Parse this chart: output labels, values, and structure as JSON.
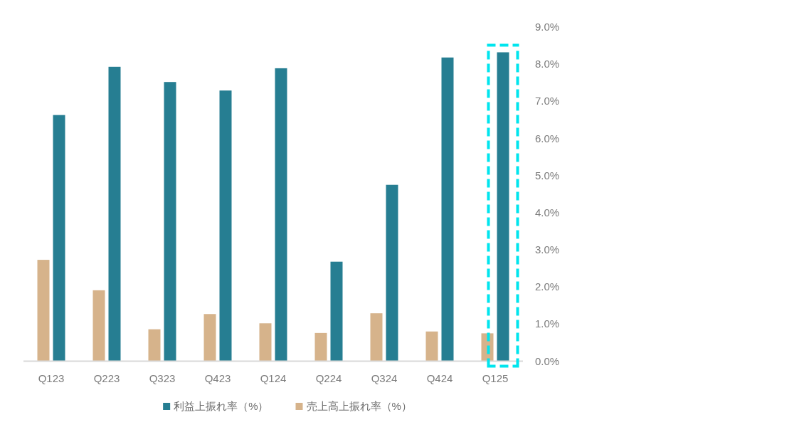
{
  "chart_data": {
    "type": "bar",
    "categories": [
      "Q123",
      "Q223",
      "Q323",
      "Q423",
      "Q124",
      "Q224",
      "Q324",
      "Q424",
      "Q125"
    ],
    "series": [
      {
        "name": "売上高上振れ率（%）",
        "color": "#d6b38b",
        "values": [
          2.73,
          1.91,
          0.86,
          1.27,
          1.02,
          0.76,
          1.29,
          0.8,
          0.75
        ]
      },
      {
        "name": "利益上振れ率（%）",
        "color": "#267e92",
        "values": [
          6.63,
          7.93,
          7.52,
          7.29,
          7.89,
          2.68,
          4.75,
          8.18,
          8.32
        ]
      }
    ],
    "ylim": [
      0,
      9
    ],
    "yticks": [
      {
        "value": 0,
        "label": "0.0%"
      },
      {
        "value": 1,
        "label": "1.0%"
      },
      {
        "value": 2,
        "label": "2.0%"
      },
      {
        "value": 3,
        "label": "3.0%"
      },
      {
        "value": 4,
        "label": "4.0%"
      },
      {
        "value": 5,
        "label": "5.0%"
      },
      {
        "value": 6,
        "label": "6.0%"
      },
      {
        "value": 7,
        "label": "7.0%"
      },
      {
        "value": 8,
        "label": "8.0%"
      },
      {
        "value": 9,
        "label": "9.0%"
      }
    ],
    "grid": false,
    "legend": "bottom"
  }
}
